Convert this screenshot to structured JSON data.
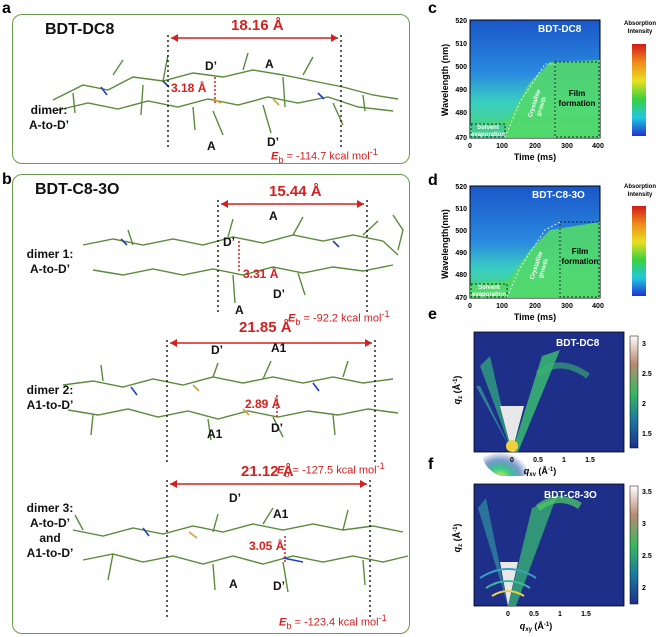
{
  "panel_a": {
    "letter": "a",
    "title": "BDT-DC8",
    "distance_long": "18.16 Å",
    "distance_short": "3.18 Å",
    "atom_labels": [
      "D’",
      "A",
      "A",
      "D’"
    ],
    "dimer_label_line1": "dimer:",
    "dimer_label_line2": "A-to-D’",
    "energy_sym": "E",
    "energy_sub": "b",
    "energy_value": " = -114.7 kcal mol",
    "energy_sup": "-1"
  },
  "panel_b": {
    "letter": "b",
    "title": "BDT-C8-3O",
    "dimers": [
      {
        "line1": "dimer 1:",
        "line2": "A-to-D’",
        "line3": "",
        "line4": "",
        "long": "15.44 Å",
        "short": "3.31 Å",
        "atoms": [
          "A",
          "D’",
          "A",
          "D’"
        ],
        "energy_value": " = -92.2 kcal mol"
      },
      {
        "line1": "dimer 2:",
        "line2": "A1-to-D’",
        "line3": "",
        "line4": "",
        "long": "21.85 Å",
        "short": "2.89 Å",
        "atoms": [
          "D’",
          "A1",
          "A1",
          "D’"
        ],
        "energy_value": " = -127.5 kcal mol"
      },
      {
        "line1": "dimer 3:",
        "line2": "A-to-D’",
        "line3": "and",
        "line4": "A1-to-D’",
        "long": "21.12 Å",
        "short": "3.05 Å",
        "atoms": [
          "D’",
          "A1",
          "A",
          "D’"
        ],
        "energy_value": " = -123.4 kcal mol"
      }
    ],
    "energy_sym": "E",
    "energy_sub": "b",
    "energy_sup": "-1"
  },
  "panel_c": {
    "letter": "c",
    "title": "BDT-DC8",
    "colorbar_title_line1": "Absorption",
    "colorbar_title_line2": "Intensity",
    "ylabel": "Wavelength (nm)",
    "xlabel": "Time (ms)",
    "yticks": [
      "520",
      "510",
      "500",
      "490",
      "480",
      "470"
    ],
    "xticks": [
      "0",
      "100",
      "200",
      "300",
      "400"
    ],
    "region1_line1": "Solvent",
    "region1_line2": "evaporation",
    "region2_line1": "Crystallite",
    "region2_line2": "growth",
    "region3_line1": "Film",
    "region3_line2": "formation"
  },
  "panel_d": {
    "letter": "d",
    "title": "BDT-C8-3O",
    "colorbar_title_line1": "Absorption",
    "colorbar_title_line2": "Intensity",
    "ylabel": "Wavelength(nm)",
    "xlabel": "Time (ms)",
    "yticks": [
      "520",
      "510",
      "500",
      "490",
      "480",
      "470"
    ],
    "xticks": [
      "0",
      "100",
      "200",
      "300",
      "400"
    ],
    "region1_line1": "Solvent",
    "region1_line2": "evaporation",
    "region2_line1": "Crystallite",
    "region2_line2": "growth",
    "region3_line1": "Film",
    "region3_line2": "formation"
  },
  "panel_e": {
    "letter": "e",
    "title": "BDT-DC8",
    "ylabel_q": "q",
    "ylabel_sub": "z",
    "ylabel_unit": " (Å",
    "ylabel_sup": "-1",
    "ylabel_close": ")",
    "xlabel_q": "q",
    "xlabel_sub": "xy",
    "xlabel_unit": " (Å",
    "xlabel_sup": "-1",
    "xlabel_close": ")",
    "xticks": [
      "0",
      "0.5",
      "1",
      "1.5"
    ],
    "colorbar_ticks": [
      "3",
      "2.5",
      "2",
      "1.5"
    ]
  },
  "panel_f": {
    "letter": "f",
    "title": "BDT-C8-3O",
    "ylabel_q": "q",
    "ylabel_sub": "z",
    "ylabel_unit": " (Å",
    "ylabel_sup": "-1",
    "ylabel_close": ")",
    "xlabel_q": "q",
    "xlabel_sub": "xy",
    "xlabel_unit": " (Å",
    "xlabel_sup": "-1",
    "xlabel_close": ")",
    "xticks": [
      "0",
      "0.5",
      "1",
      "1.5"
    ],
    "colorbar_ticks": [
      "3.5",
      "3",
      "2.5",
      "2"
    ]
  },
  "colors": {
    "box_border": "#6a9a4a",
    "distance_red": "#d42020",
    "molecule_green": "#5a8a3a",
    "map_blue": "#1a63c8",
    "giwaxs_bg": "#1e2f8a"
  }
}
